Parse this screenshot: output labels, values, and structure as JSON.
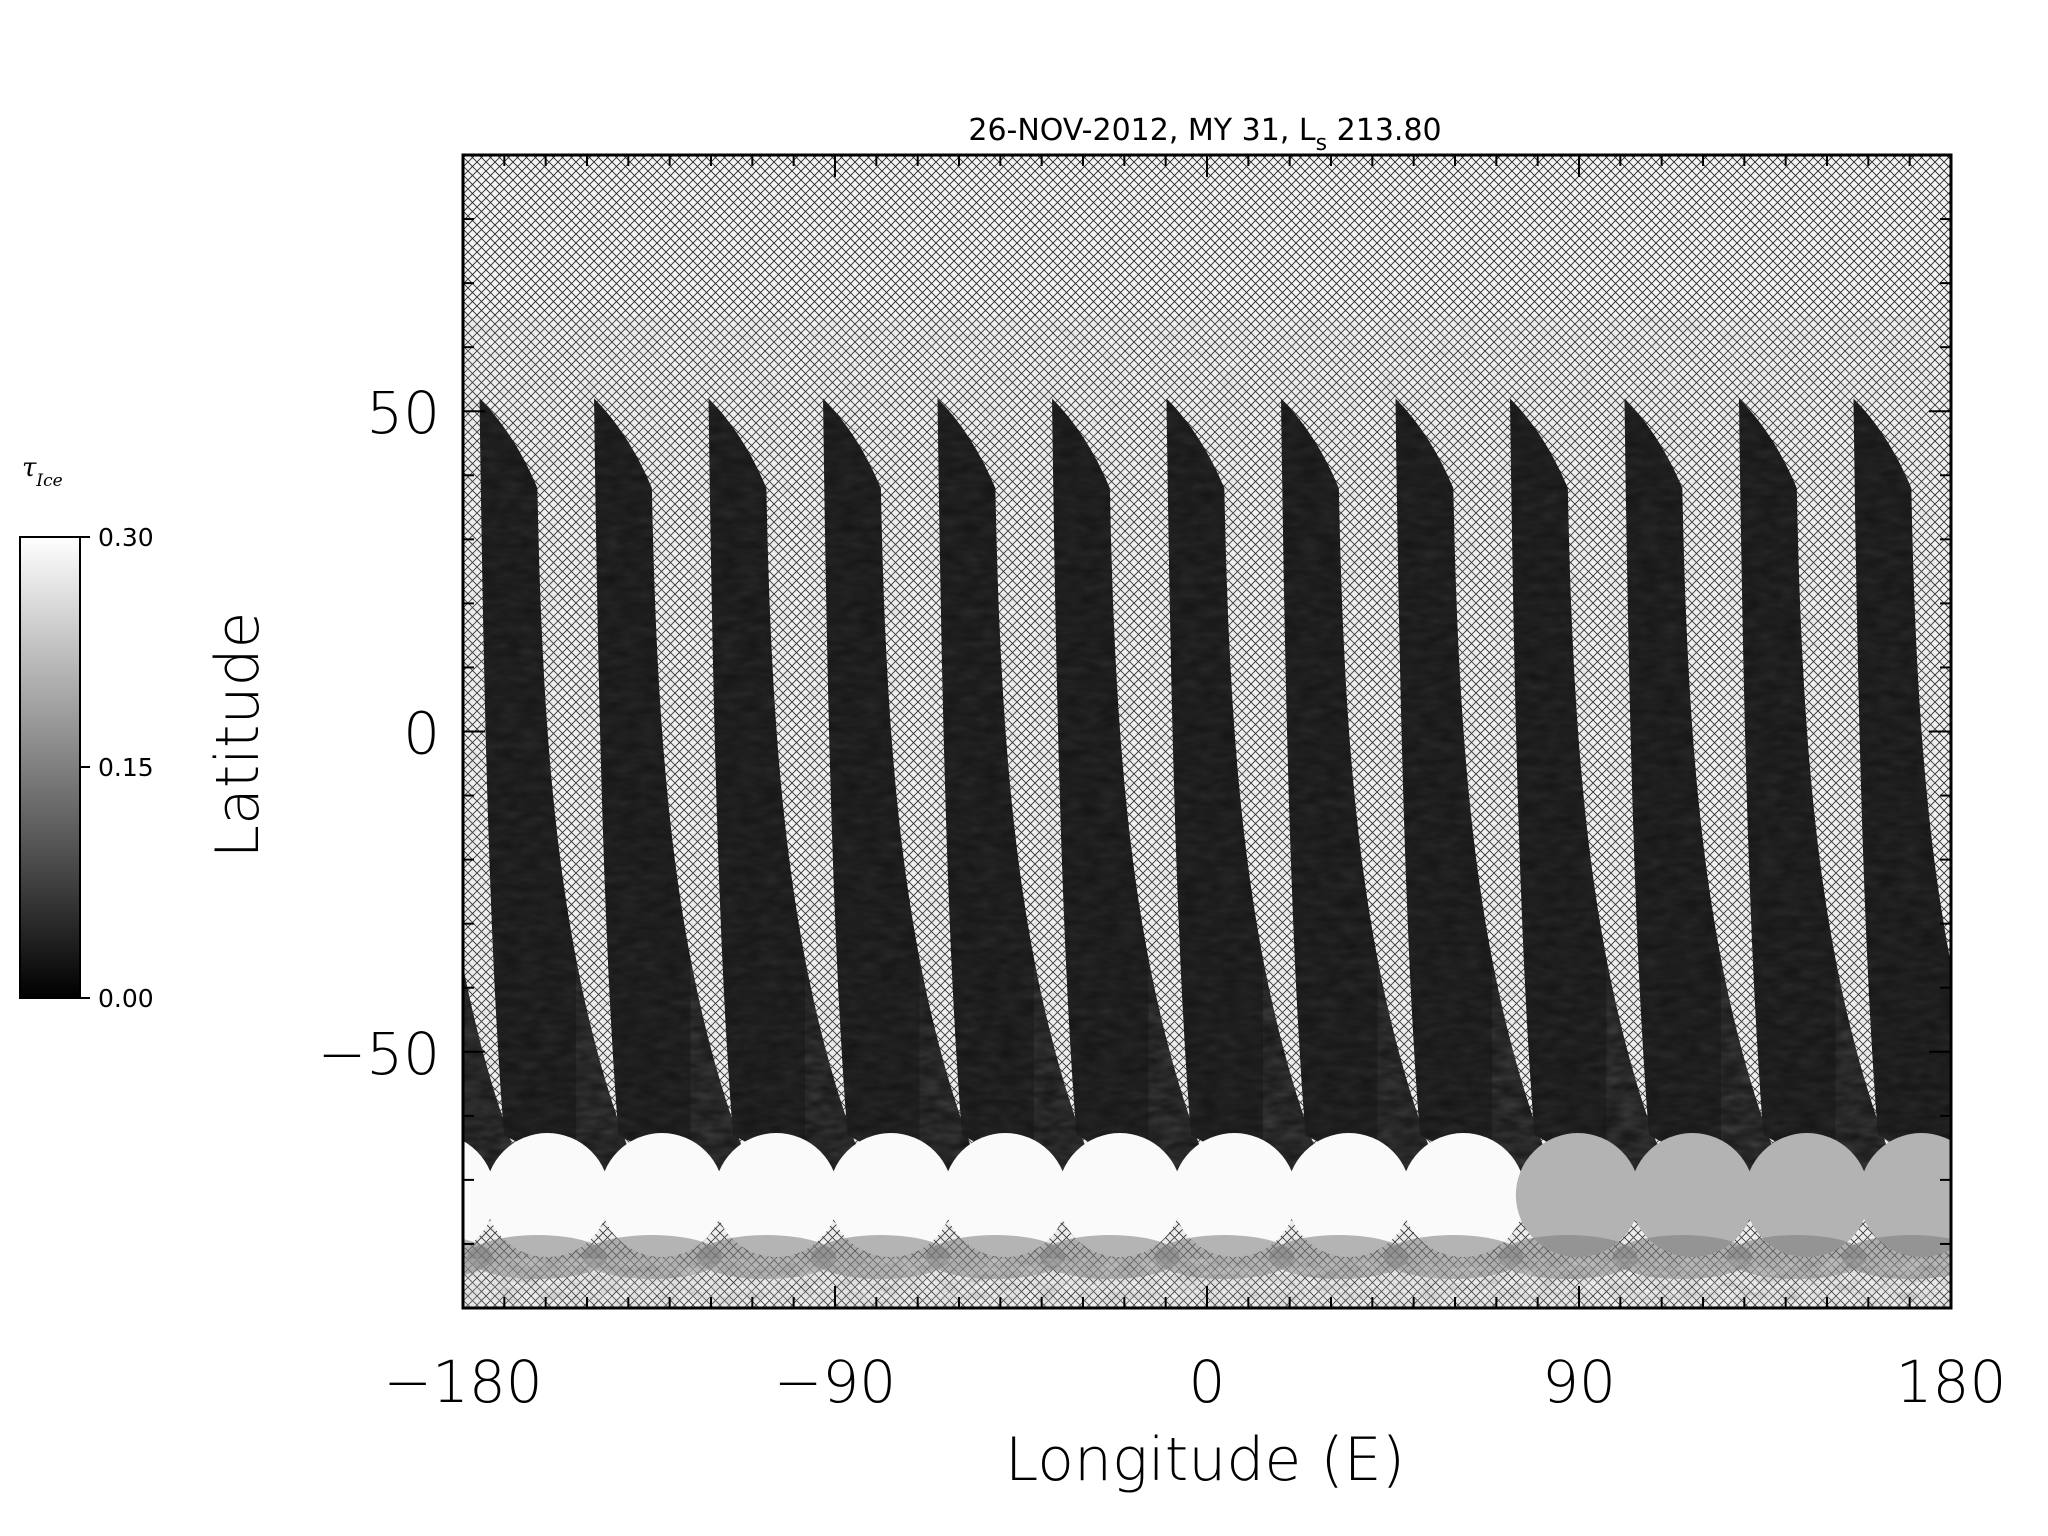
{
  "chart_data": {
    "type": "heatmap",
    "title": {
      "date": "26-NOV-2012",
      "mars_year": "MY 31",
      "ls_symbol": "L",
      "ls_subscript": "s",
      "ls_value": "213.80"
    },
    "xlabel": "Longitude (E)",
    "ylabel": "Latitude",
    "xlim": [
      -180,
      180
    ],
    "ylim": [
      -90,
      90
    ],
    "xticks": [
      -180,
      -90,
      0,
      90,
      180
    ],
    "xtick_labels": [
      "−180",
      "−90",
      "0",
      "90",
      "180"
    ],
    "yticks": [
      -50,
      0,
      50
    ],
    "ytick_labels": [
      "−50",
      "0",
      "50"
    ],
    "colorbar": {
      "label_symbol": "τ",
      "label_subscript": "Ice",
      "min": 0.0,
      "max": 0.3,
      "ticks": [
        "0.30",
        "0.15",
        "0.00"
      ],
      "colormap": "grayscale"
    },
    "no_data_fill": "crosshatch",
    "swaths": {
      "count": 13,
      "top_latitude": 52,
      "lon_spacing_deg": 27.7,
      "first_top_lon": -176,
      "bottom_lon_offset_deg": 40,
      "typical_value": 0.01,
      "south_polar_cap_value": 0.3,
      "south_polar_cap_lat": -63
    }
  }
}
